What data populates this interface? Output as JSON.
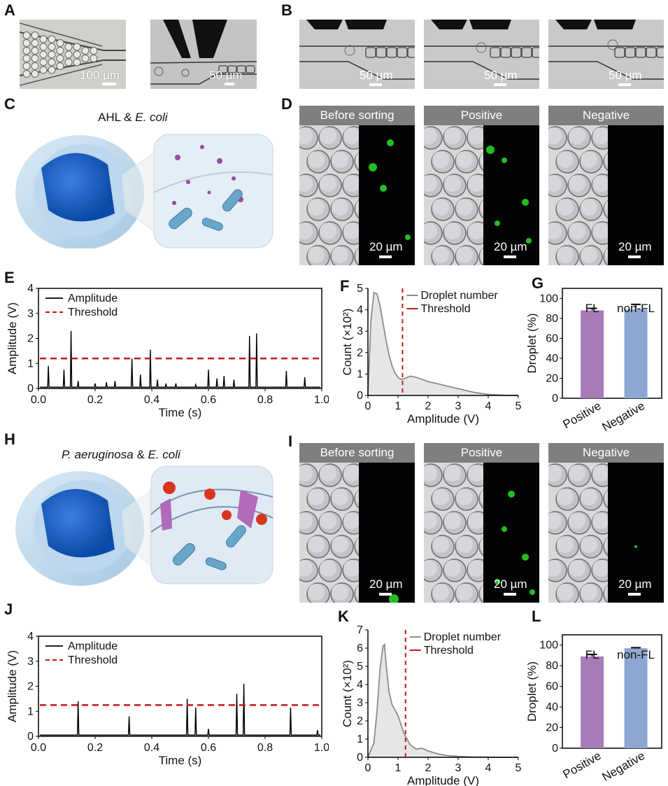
{
  "panels": {
    "A": {
      "label": "A",
      "scale_left": "100 µm",
      "scale_right": "50 µm"
    },
    "B": {
      "label": "B",
      "scales": [
        "50 µm",
        "50 µm",
        "50 µm"
      ]
    },
    "C": {
      "label": "C",
      "title_prefix": "AHL & ",
      "title_italic": "E. coli"
    },
    "D": {
      "label": "D",
      "headers": [
        "Before sorting",
        "Positive",
        "Negative"
      ],
      "scale": "20 µm"
    },
    "E": {
      "label": "E"
    },
    "F": {
      "label": "F"
    },
    "G": {
      "label": "G"
    },
    "H": {
      "label": "H",
      "title_italic1": "P. aeruginosa",
      "title_mid": " & ",
      "title_italic2": "E. coli"
    },
    "I": {
      "label": "I",
      "headers": [
        "Before sorting",
        "Positive",
        "Negative"
      ],
      "scale": "20 µm"
    },
    "J": {
      "label": "J"
    },
    "K": {
      "label": "K"
    },
    "L": {
      "label": "L"
    }
  },
  "colors": {
    "amplitude": "#000000",
    "threshold": "#c81818",
    "histogram": "#8c8c8c",
    "fill": "#e6e6e6",
    "fl_bar": "#a77bb8",
    "nonfl_bar": "#8da7d2",
    "fluor": "#28e028"
  },
  "chart_data": [
    {
      "id": "E",
      "type": "line",
      "xlabel": "Time (s)",
      "ylabel": "Amplitude (V)",
      "xlim": [
        0,
        1
      ],
      "ylim": [
        0,
        4
      ],
      "xticks": [
        "0.0",
        "0.2",
        "0.4",
        "0.6",
        "0.8",
        "1.0"
      ],
      "yticks": [
        "0",
        "1",
        "2",
        "3",
        "4"
      ],
      "legend": [
        "Amplitude",
        "Threshold"
      ],
      "threshold": 1.2,
      "baseline": 0.05,
      "peaks": [
        [
          0.035,
          0.9
        ],
        [
          0.09,
          0.75
        ],
        [
          0.115,
          2.3
        ],
        [
          0.14,
          0.3
        ],
        [
          0.2,
          0.2
        ],
        [
          0.24,
          0.25
        ],
        [
          0.27,
          0.3
        ],
        [
          0.33,
          1.2
        ],
        [
          0.36,
          0.55
        ],
        [
          0.395,
          1.55
        ],
        [
          0.42,
          0.35
        ],
        [
          0.45,
          0.2
        ],
        [
          0.485,
          0.2
        ],
        [
          0.555,
          0.15
        ],
        [
          0.6,
          0.75
        ],
        [
          0.63,
          0.4
        ],
        [
          0.655,
          0.5
        ],
        [
          0.69,
          0.35
        ],
        [
          0.745,
          2.1
        ],
        [
          0.77,
          2.2
        ],
        [
          0.875,
          0.7
        ],
        [
          0.94,
          0.45
        ]
      ]
    },
    {
      "id": "F",
      "type": "area",
      "xlabel": "Amplitude (V)",
      "ylabel": "Count (×10²)",
      "xlim": [
        0,
        5
      ],
      "ylim": [
        0,
        5
      ],
      "xticks": [
        "0",
        "1",
        "2",
        "3",
        "4",
        "5"
      ],
      "yticks": [
        "0",
        "1",
        "2",
        "3",
        "4",
        "5"
      ],
      "legend": [
        "Droplet number",
        "Threshold"
      ],
      "threshold": 1.15,
      "x": [
        0,
        0.1,
        0.2,
        0.3,
        0.4,
        0.5,
        0.6,
        0.7,
        0.8,
        0.9,
        1.0,
        1.1,
        1.2,
        1.4,
        1.6,
        1.8,
        2.0,
        2.3,
        2.6,
        3.0,
        3.5,
        4.0,
        4.5,
        5.0
      ],
      "y": [
        0,
        3.5,
        4.8,
        4.75,
        4.2,
        3.4,
        2.6,
        1.9,
        1.4,
        1.05,
        0.85,
        0.75,
        0.78,
        0.9,
        0.85,
        0.75,
        0.65,
        0.55,
        0.45,
        0.32,
        0.15,
        0.05,
        0.01,
        0
      ]
    },
    {
      "id": "G",
      "type": "bar",
      "ylabel": "Droplet (%)",
      "ylim": [
        0,
        110
      ],
      "yticks": [
        "0",
        "20",
        "40",
        "60",
        "80",
        "100"
      ],
      "categories": [
        "Positive",
        "Negative"
      ],
      "values": [
        88,
        89
      ],
      "errors": [
        2,
        5
      ],
      "bar_labels": [
        "FL",
        "non-FL"
      ]
    },
    {
      "id": "J",
      "type": "line",
      "xlabel": "Time (s)",
      "ylabel": "Amplitude (V)",
      "xlim": [
        0,
        1
      ],
      "ylim": [
        0,
        4
      ],
      "xticks": [
        "0.0",
        "0.2",
        "0.4",
        "0.6",
        "0.8",
        "1.0"
      ],
      "yticks": [
        "0",
        "1",
        "2",
        "3",
        "4"
      ],
      "legend": [
        "Amplitude",
        "Threshold"
      ],
      "threshold": 1.25,
      "baseline": 0.05,
      "peaks": [
        [
          0.14,
          1.4
        ],
        [
          0.32,
          0.8
        ],
        [
          0.525,
          1.5
        ],
        [
          0.555,
          1.15
        ],
        [
          0.6,
          0.3
        ],
        [
          0.7,
          1.7
        ],
        [
          0.725,
          2.1
        ],
        [
          0.89,
          1.15
        ],
        [
          0.985,
          0.25
        ]
      ]
    },
    {
      "id": "K",
      "type": "area",
      "xlabel": "Amplitude (V)",
      "ylabel": "Count (×10²)",
      "xlim": [
        0,
        5
      ],
      "ylim": [
        0,
        7
      ],
      "xticks": [
        "0",
        "1",
        "2",
        "3",
        "4",
        "5"
      ],
      "yticks": [
        "0",
        "1",
        "2",
        "3",
        "4",
        "5",
        "6",
        "7"
      ],
      "legend": [
        "Droplet number",
        "Threshold"
      ],
      "threshold": 1.25,
      "x": [
        0,
        0.2,
        0.3,
        0.4,
        0.5,
        0.55,
        0.6,
        0.7,
        0.8,
        0.9,
        1.0,
        1.1,
        1.2,
        1.4,
        1.6,
        1.8,
        2.0,
        2.3,
        2.6,
        3.0,
        3.5,
        4.0,
        4.5,
        5.0
      ],
      "y": [
        0,
        0.8,
        2.5,
        4.8,
        6.1,
        6.2,
        5.2,
        3.6,
        2.9,
        2.6,
        2.3,
        1.8,
        1.3,
        0.7,
        0.45,
        0.5,
        0.35,
        0.2,
        0.1,
        0.05,
        0.02,
        0.01,
        0,
        0
      ]
    },
    {
      "id": "L",
      "type": "bar",
      "ylabel": "Droplet (%)",
      "ylim": [
        0,
        110
      ],
      "yticks": [
        "0",
        "20",
        "40",
        "60",
        "80",
        "100"
      ],
      "categories": [
        "Positive",
        "Negative"
      ],
      "values": [
        89,
        97
      ],
      "errors": [
        2,
        0.5
      ],
      "bar_labels": [
        "FL",
        "non-FL"
      ]
    }
  ]
}
